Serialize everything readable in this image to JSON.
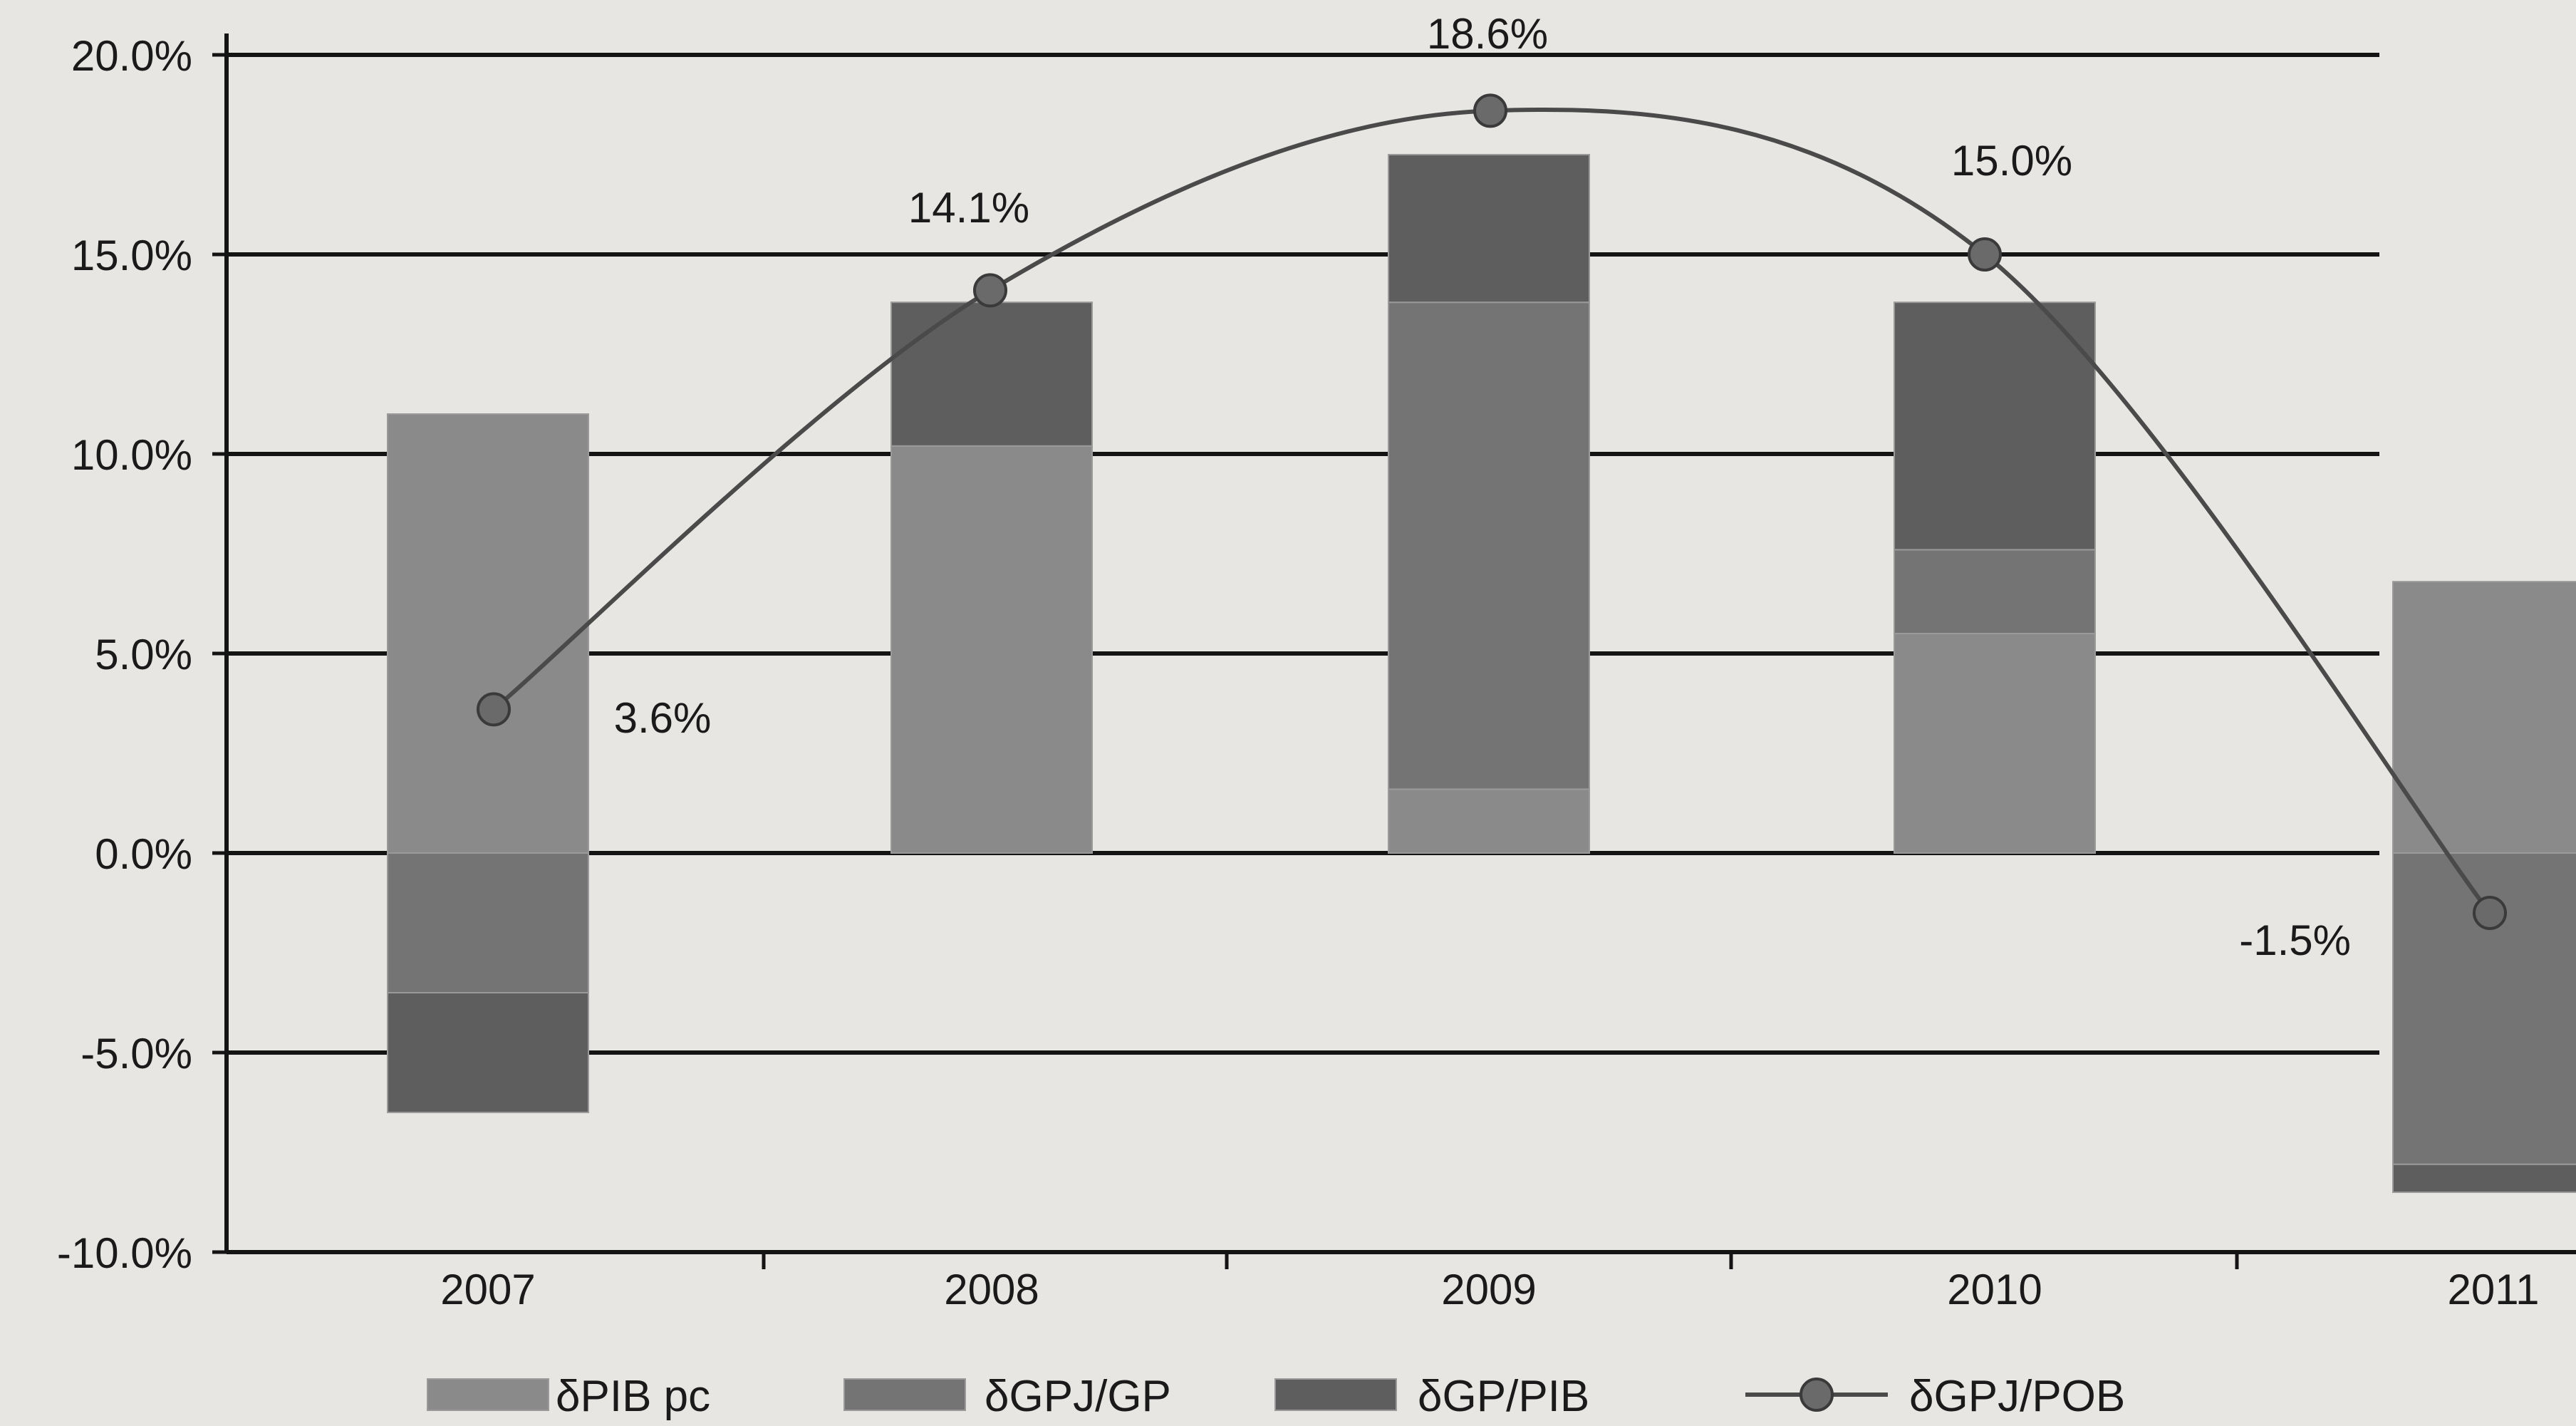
{
  "chart_data": {
    "type": "bar",
    "stacked": true,
    "categories": [
      "2007",
      "2008",
      "2009",
      "2010",
      "2011"
    ],
    "series": [
      {
        "name": "δPIB pc",
        "kind": "bar",
        "color": "#8a8a8a",
        "values": [
          11.0,
          10.2,
          1.6,
          5.5,
          6.8
        ]
      },
      {
        "name": "δGPJ/GP",
        "kind": "bar",
        "color": "#747474",
        "values": [
          -3.5,
          0.0,
          12.2,
          2.1,
          -7.8
        ]
      },
      {
        "name": "δGP/PIB",
        "kind": "bar",
        "color": "#5e5e5e",
        "values": [
          -3.0,
          3.6,
          3.7,
          6.2,
          -0.7
        ]
      },
      {
        "name": "δGPJ/POB",
        "kind": "line",
        "color": "#4a4a4a",
        "values": [
          3.6,
          14.1,
          18.6,
          15.0,
          -1.5
        ],
        "labels": [
          "3.6%",
          "14.1%",
          "18.6%",
          "15.0%",
          "-1.5%"
        ]
      }
    ],
    "y_ticks": [
      "20.0%",
      "15.0%",
      "10.0%",
      "5.0%",
      "0.0%",
      "-5.0%",
      "-10.0%"
    ],
    "ylim": [
      -10,
      20
    ],
    "grid": true,
    "legend_position": "bottom"
  }
}
